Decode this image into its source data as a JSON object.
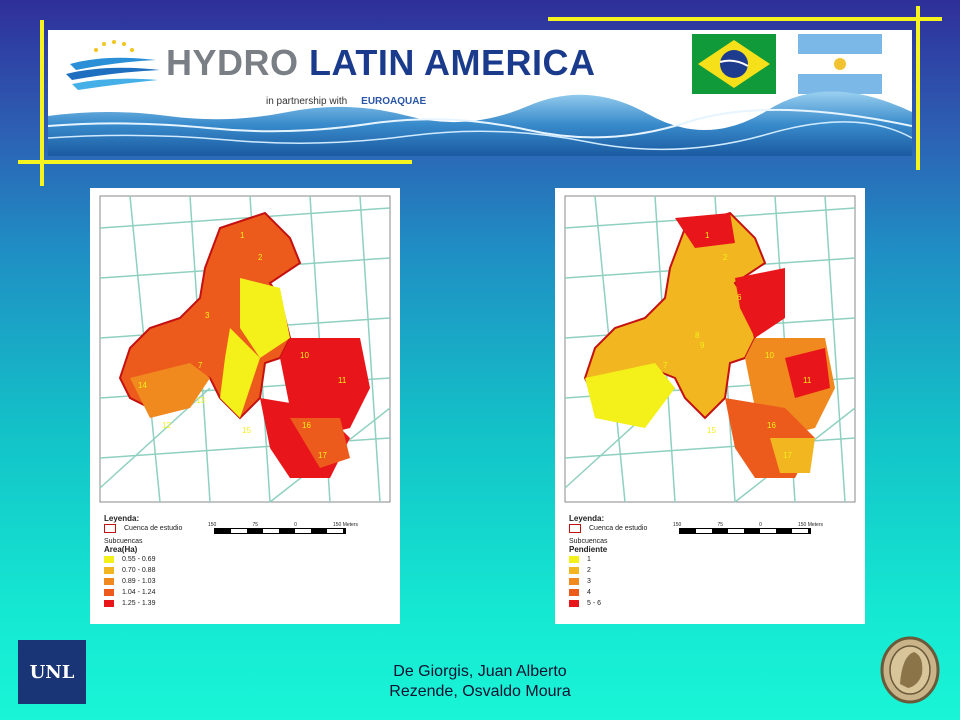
{
  "banner": {
    "title_part1": "HYDRO ",
    "title_part2": "LATIN AMERICA",
    "partner_text": "in partnership with",
    "partner_name": "EUROAQUAE",
    "flags": [
      "brazil-flag",
      "argentina-flag"
    ]
  },
  "maps": [
    {
      "legend_title": "Leyenda:",
      "study_label": "Cuenca de estudio",
      "sub_label": "Subcuencas",
      "field_label": "Area(Ha)",
      "classes": [
        {
          "label": "0.55 - 0.69",
          "color": "#f3f01a"
        },
        {
          "label": "0.70 - 0.88",
          "color": "#f2b620"
        },
        {
          "label": "0.89 - 1.03",
          "color": "#f08a1e"
        },
        {
          "label": "1.04 - 1.24",
          "color": "#ec5a1c"
        },
        {
          "label": "1.25 - 1.39",
          "color": "#e8161a"
        }
      ],
      "scale_labels": [
        "150",
        "75",
        "0",
        "150 Meters"
      ]
    },
    {
      "legend_title": "Leyenda:",
      "study_label": "Cuenca de estudio",
      "sub_label": "Subcuencas",
      "field_label": "Pendiente",
      "classes": [
        {
          "label": "1",
          "color": "#f3f01a"
        },
        {
          "label": "2",
          "color": "#f2b620"
        },
        {
          "label": "3",
          "color": "#f08a1e"
        },
        {
          "label": "4",
          "color": "#ec5a1c"
        },
        {
          "label": "5 - 6",
          "color": "#e8161a"
        }
      ],
      "scale_labels": [
        "150",
        "75",
        "0",
        "150 Meters"
      ]
    }
  ],
  "credits": {
    "line1": "De Giorgis, Juan Alberto",
    "line2": "Rezende, Osvaldo Moura"
  },
  "footer": {
    "unl_label": "UNL"
  }
}
